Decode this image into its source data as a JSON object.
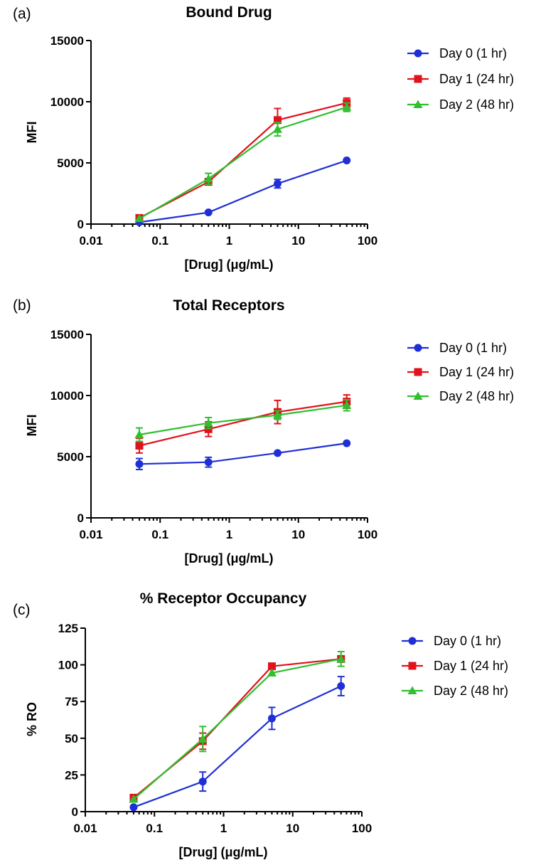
{
  "panels": [
    {
      "letter": "(a)"
    },
    {
      "letter": "(b)"
    },
    {
      "letter": "(c)"
    }
  ],
  "colors": {
    "day0": "#1f2fd6",
    "day1": "#e0121d",
    "day2": "#2fbf2f"
  },
  "chart_data": [
    {
      "type": "line",
      "title": "Bound Drug",
      "xlabel": "[Drug] (μg/mL)",
      "ylabel": "MFI",
      "xscale": "log",
      "xlim": [
        0.01,
        100
      ],
      "ylim": [
        0,
        15000
      ],
      "xticks": [
        0.01,
        0.1,
        1,
        10,
        100
      ],
      "xtick_labels": [
        "0.01",
        "0.1",
        "1",
        "10",
        "100"
      ],
      "yticks": [
        0,
        5000,
        10000,
        15000
      ],
      "ytick_labels": [
        "0",
        "5000",
        "10000",
        "15000"
      ],
      "legend_position": "right",
      "x": [
        0.05,
        0.5,
        5,
        50
      ],
      "series": [
        {
          "name": "Day 0 (1 hr)",
          "color": "#1f2fd6",
          "marker": "circle",
          "values": [
            150,
            950,
            3300,
            5200
          ],
          "errors": [
            0,
            0,
            350,
            0
          ]
        },
        {
          "name": "Day 1 (24 hr)",
          "color": "#e0121d",
          "marker": "square",
          "values": [
            500,
            3450,
            8500,
            9900
          ],
          "errors": [
            0,
            250,
            950,
            400
          ]
        },
        {
          "name": "Day 2 (48 hr)",
          "color": "#2fbf2f",
          "marker": "triangle",
          "values": [
            450,
            3700,
            7750,
            9550
          ],
          "errors": [
            0,
            450,
            550,
            350
          ]
        }
      ]
    },
    {
      "type": "line",
      "title": "Total  Receptors",
      "xlabel": "[Drug] (μg/mL)",
      "ylabel": "MFI",
      "xscale": "log",
      "xlim": [
        0.01,
        100
      ],
      "ylim": [
        0,
        15000
      ],
      "xticks": [
        0.01,
        0.1,
        1,
        10,
        100
      ],
      "xtick_labels": [
        "0.01",
        "0.1",
        "1",
        "10",
        "100"
      ],
      "yticks": [
        0,
        5000,
        10000,
        15000
      ],
      "ytick_labels": [
        "0",
        "5000",
        "10000",
        "15000"
      ],
      "legend_position": "right",
      "x": [
        0.05,
        0.5,
        5,
        50
      ],
      "series": [
        {
          "name": "Day 0 (1 hr)",
          "color": "#1f2fd6",
          "marker": "circle",
          "values": [
            4400,
            4550,
            5300,
            6100
          ],
          "errors": [
            450,
            400,
            0,
            0
          ]
        },
        {
          "name": "Day 1 (24 hr)",
          "color": "#e0121d",
          "marker": "square",
          "values": [
            5900,
            7250,
            8650,
            9500
          ],
          "errors": [
            600,
            600,
            950,
            550
          ]
        },
        {
          "name": "Day 2 (48 hr)",
          "color": "#2fbf2f",
          "marker": "triangle",
          "values": [
            6800,
            7750,
            8400,
            9200
          ],
          "errors": [
            550,
            450,
            350,
            450
          ]
        }
      ]
    },
    {
      "type": "line",
      "title": "% Receptor Occupancy",
      "xlabel": "[Drug] (μg/mL)",
      "ylabel": "% RO",
      "xscale": "log",
      "xlim": [
        0.01,
        100
      ],
      "ylim": [
        0,
        125
      ],
      "xticks": [
        0.01,
        0.1,
        1,
        10,
        100
      ],
      "xtick_labels": [
        "0.01",
        "0.1",
        "1",
        "10",
        "100"
      ],
      "yticks": [
        0,
        25,
        50,
        75,
        100,
        125
      ],
      "ytick_labels": [
        "0",
        "25",
        "50",
        "75",
        "100",
        "125"
      ],
      "legend_position": "right",
      "x": [
        0.05,
        0.5,
        5,
        50
      ],
      "series": [
        {
          "name": "Day 0 (1 hr)",
          "color": "#1f2fd6",
          "marker": "circle",
          "values": [
            3,
            20.5,
            63.5,
            85.5
          ],
          "errors": [
            0,
            6.5,
            7.5,
            6.5
          ]
        },
        {
          "name": "Day 1 (24 hr)",
          "color": "#e0121d",
          "marker": "square",
          "values": [
            9.5,
            48,
            99,
            104
          ],
          "errors": [
            0,
            5.5,
            0,
            0
          ]
        },
        {
          "name": "Day 2 (48 hr)",
          "color": "#2fbf2f",
          "marker": "triangle",
          "values": [
            8.5,
            49.5,
            94.5,
            104
          ],
          "errors": [
            0,
            8.5,
            0,
            5
          ]
        }
      ]
    }
  ]
}
